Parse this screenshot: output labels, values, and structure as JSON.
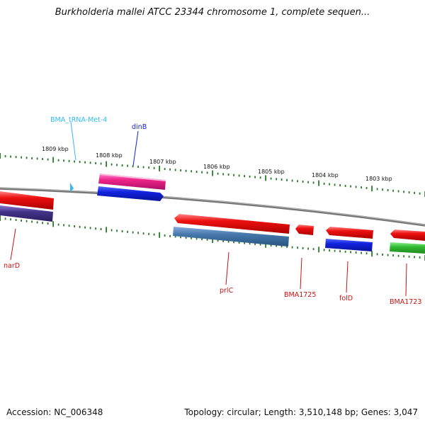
{
  "title": "Burkholderia mallei ATCC 23344 chromosome 1, complete sequen...",
  "footer": {
    "accession": "Accession: NC_006348",
    "summary": "Topology: circular; Length: 3,510,148 bp; Genes: 3,047"
  },
  "scale": {
    "ticks": [
      "1809 kbp",
      "1808 kbp",
      "1807 kbp",
      "1806 kbp",
      "1805 kbp",
      "1804 kbp",
      "1803 kbp"
    ]
  },
  "genes": {
    "trna": "BMA_tRNA-Met-4",
    "dinB": "dinB",
    "narD": "narD",
    "prlC": "prlC",
    "bma1725": "BMA1725",
    "folD": "folD",
    "bma1723": "BMA1723"
  },
  "colors": {
    "cds": "#ee1111",
    "gene_blue": "#1122dd",
    "gene_pink": "#ee2288",
    "gene_green": "#33bb33",
    "gene_steel": "#4477aa",
    "gene_navy": "#443388",
    "trna": "#33bbee",
    "backbone": "#888888",
    "tick": "#2a7a2a"
  }
}
